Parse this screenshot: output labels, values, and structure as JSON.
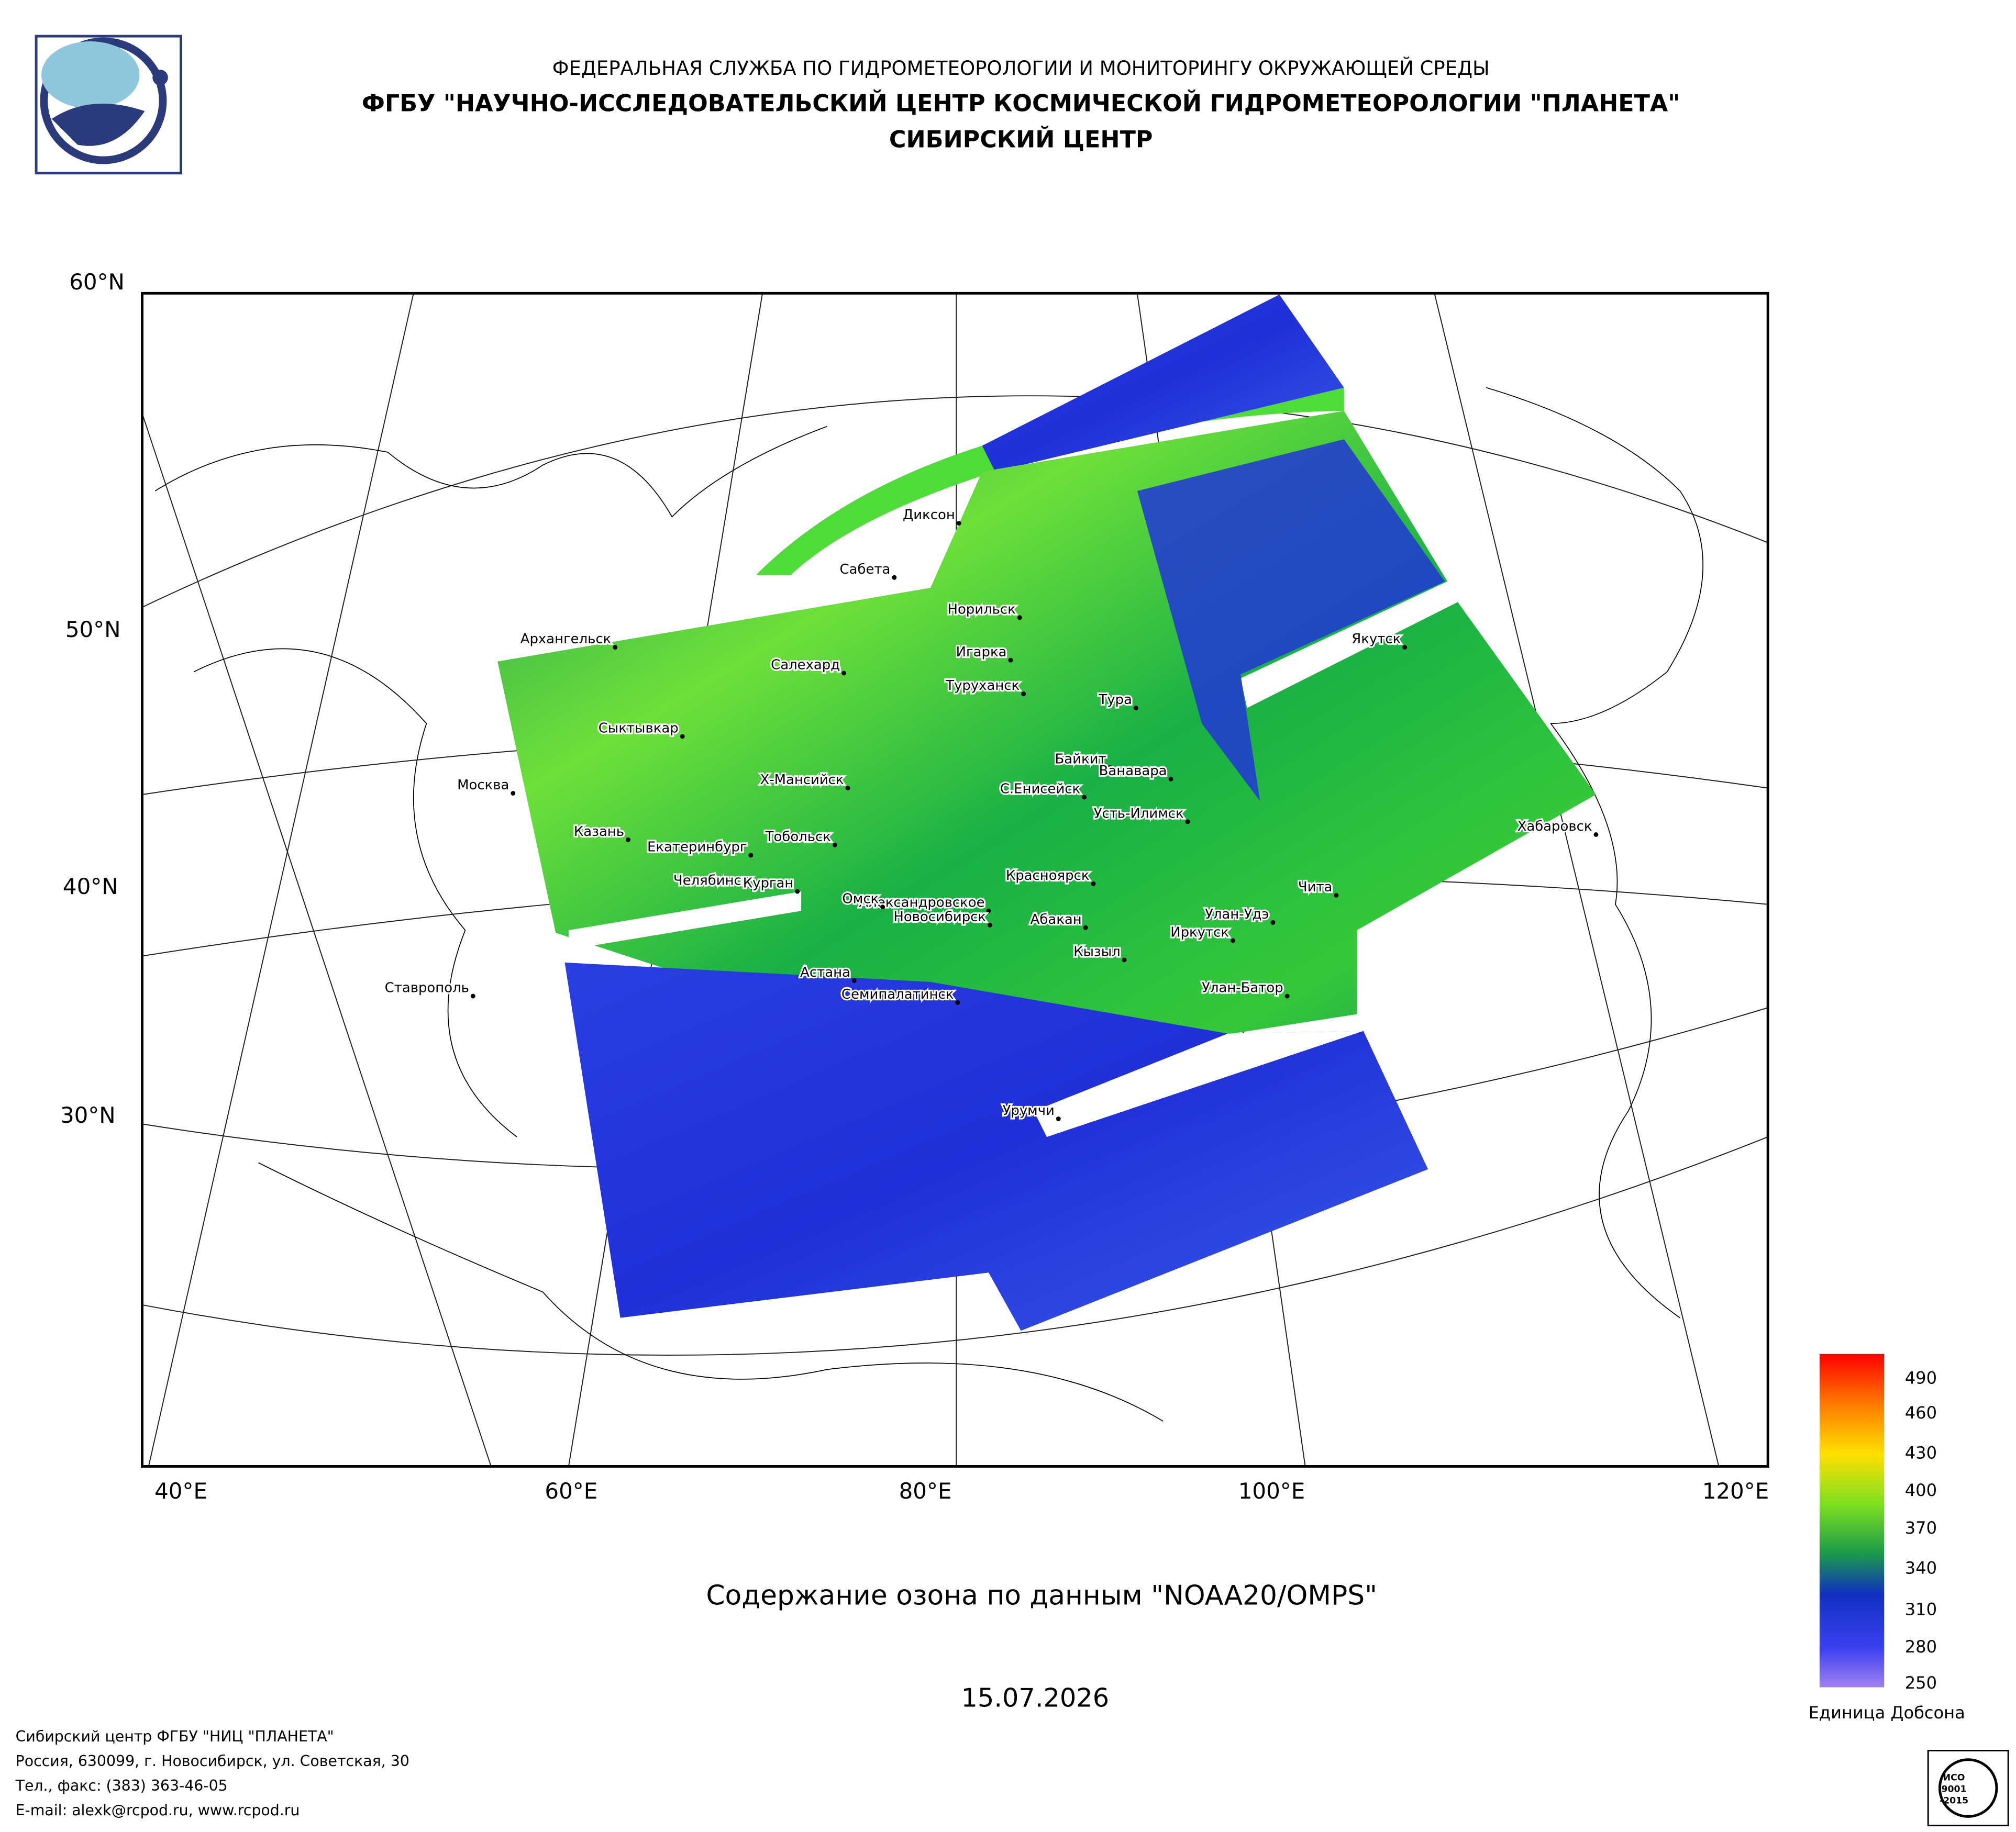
{
  "header": {
    "agency": "ФЕДЕРАЛЬНАЯ СЛУЖБА ПО ГИДРОМЕТЕОРОЛОГИИ И МОНИТОРИНГУ ОКРУЖАЮЩЕЙ СРЕДЫ",
    "institute": "ФГБУ \"НАУЧНО-ИССЛЕДОВАТЕЛЬСКИЙ ЦЕНТР КОСМИЧЕСКОЙ ГИДРОМЕТЕОРОЛОГИИ \"ПЛАНЕТА\"",
    "center": "СИБИРСКИЙ ЦЕНТР"
  },
  "map": {
    "lat_labels": [
      "60°N",
      "50°N",
      "40°N",
      "30°N"
    ],
    "lon_labels": [
      "40°E",
      "60°E",
      "80°E",
      "100°E",
      "120°E"
    ],
    "cities": [
      "Диксон",
      "Сабета",
      "Норильск",
      "Архангельск",
      "Салехард",
      "Игарка",
      "Туруханск",
      "Тура",
      "Сыктывкар",
      "Байкит",
      "Ванавара",
      "Москва",
      "Х-Мансийск",
      "С.Енисейск",
      "Усть-Илимск",
      "Казань",
      "Тобольск",
      "Екатеринбург",
      "Хабаровск",
      "Красноярск",
      "Челябинск",
      "Курган",
      "Чита",
      "Александровское",
      "Омск",
      "Новосибирск",
      "Абакан",
      "Улан-Удэ",
      "Иркутск",
      "Кызыл",
      "Астана",
      "Семипалатинск",
      "Улан-Батор",
      "Якутск",
      "Урумчи",
      "Ставрополь"
    ]
  },
  "colorbar": {
    "ticks": [
      490,
      460,
      430,
      400,
      370,
      340,
      310,
      280,
      250
    ],
    "unit": "Единица Добсона"
  },
  "caption": "Содержание озона по данным \"NOAA20/OMPS\"",
  "date": "15.07.2026",
  "footer": {
    "lines": [
      "Сибирский центр ФГБУ \"НИЦ \"ПЛАНЕТА\"",
      "Россия, 630099, г. Новосибирск, ул. Советская, 30",
      "Тел., факс: (383) 363-46-05",
      "E-mail: alexk@rcpod.ru, www.rcpod.ru"
    ]
  },
  "badge": {
    "lines": [
      "ИСО",
      "9001",
      "-2015"
    ]
  }
}
